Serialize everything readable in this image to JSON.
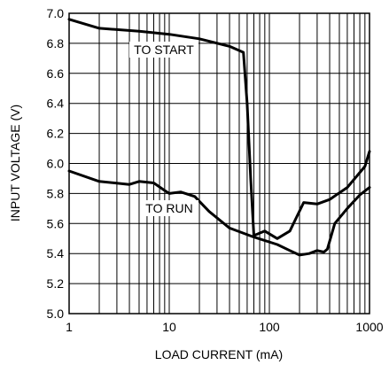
{
  "chart_data": {
    "type": "line",
    "title": "",
    "xlabel": "LOAD CURRENT (mA)",
    "ylabel": "INPUT VOLTAGE (V)",
    "xscale": "log",
    "xlim": [
      1,
      1000
    ],
    "ylim": [
      5.0,
      7.0
    ],
    "grid": true,
    "x_ticks": [
      1,
      10,
      100,
      1000
    ],
    "x_tick_labels": [
      "1",
      "10",
      "100",
      "1000"
    ],
    "y_ticks": [
      5.0,
      5.2,
      5.4,
      5.6,
      5.8,
      6.0,
      6.2,
      6.4,
      6.6,
      6.8,
      7.0
    ],
    "y_tick_labels": [
      "5.0",
      "5.2",
      "5.4",
      "5.6",
      "5.8",
      "6.0",
      "6.2",
      "6.4",
      "6.6",
      "6.8",
      "7.0"
    ],
    "annotations": [
      {
        "text": "TO START"
      },
      {
        "text": "TO RUN"
      }
    ],
    "series": [
      {
        "name": "TO START",
        "x": [
          1,
          2,
          5,
          10,
          20,
          40,
          55,
          60,
          65,
          70,
          90,
          120,
          160,
          220,
          300,
          400,
          600,
          900,
          1000
        ],
        "y": [
          6.96,
          6.9,
          6.88,
          6.86,
          6.83,
          6.78,
          6.74,
          6.4,
          5.9,
          5.52,
          5.55,
          5.5,
          5.55,
          5.74,
          5.73,
          5.76,
          5.84,
          5.98,
          6.08
        ]
      },
      {
        "name": "TO RUN",
        "x": [
          1,
          2,
          4,
          5,
          7,
          9,
          10,
          13,
          18,
          25,
          40,
          70,
          120,
          160,
          200,
          250,
          300,
          350,
          380,
          450,
          600,
          800,
          1000
        ],
        "y": [
          5.95,
          5.88,
          5.86,
          5.88,
          5.87,
          5.82,
          5.8,
          5.81,
          5.78,
          5.68,
          5.57,
          5.51,
          5.46,
          5.42,
          5.39,
          5.4,
          5.42,
          5.41,
          5.43,
          5.6,
          5.7,
          5.79,
          5.84
        ]
      }
    ]
  }
}
